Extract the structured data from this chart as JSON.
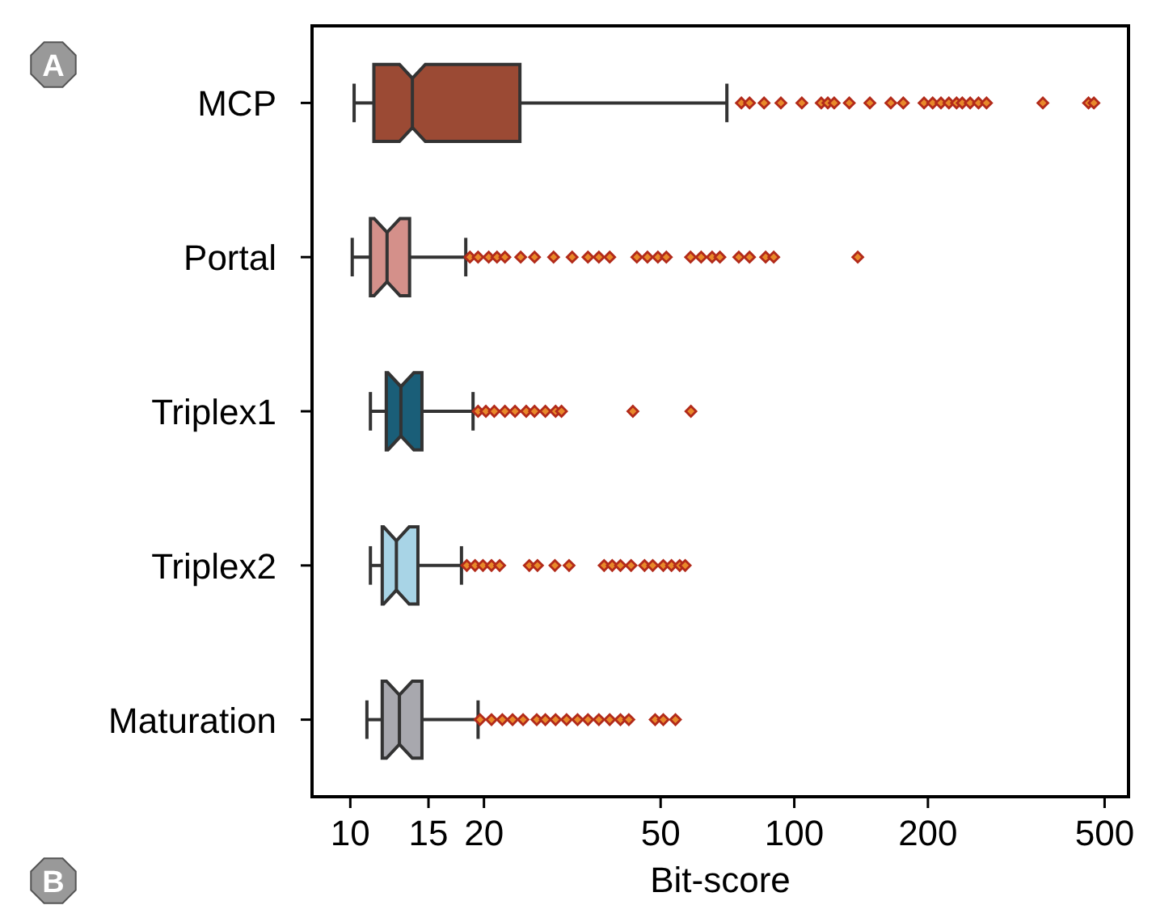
{
  "chart_data": {
    "type": "box",
    "orientation": "horizontal",
    "xlabel": "Bit-score",
    "log": "x",
    "xlim": [
      8.2,
      566
    ],
    "xticks": [
      10,
      15,
      20,
      50,
      100,
      200,
      500
    ],
    "marker": "diamond",
    "grid": false,
    "annotations": [
      "A",
      "B"
    ],
    "categories": [
      "MCP",
      "Portal",
      "Triplex1",
      "Triplex2",
      "Maturation"
    ],
    "colors": [
      "#9b4a34",
      "#d4908a",
      "#1a5e78",
      "#a8d4e6",
      "#a8a8ae"
    ],
    "boxes": [
      {
        "low": 10.2,
        "q1": 11.3,
        "median": 13.8,
        "q3": 24.1,
        "high": 70.5,
        "outliers": [
          76,
          79.3,
          85.5,
          93.3,
          104,
          115,
          119,
          123,
          133,
          148,
          165,
          176,
          196,
          205,
          214,
          223,
          232,
          239,
          249,
          260,
          271,
          363,
          460,
          473
        ]
      },
      {
        "low": 10.1,
        "q1": 11.1,
        "median": 12.1,
        "q3": 13.6,
        "high": 18.2,
        "outliers": [
          18.6,
          19.4,
          20.5,
          21.4,
          22.3,
          24.2,
          26,
          28.7,
          31.6,
          34.3,
          36.3,
          38.4,
          44.2,
          46.7,
          49.3,
          51.5,
          58.4,
          61.7,
          65.3,
          68,
          75,
          79.3,
          86.2,
          89.9,
          139
        ]
      },
      {
        "low": 11.1,
        "q1": 12.05,
        "median": 13,
        "q3": 14.5,
        "high": 18.9,
        "outliers": [
          19.4,
          20.2,
          21.1,
          22.3,
          23.5,
          24.9,
          26,
          27.5,
          29,
          29.9,
          43.3,
          58.5
        ]
      },
      {
        "low": 11.1,
        "q1": 11.8,
        "median": 12.7,
        "q3": 14.2,
        "high": 17.8,
        "outliers": [
          18.3,
          19.1,
          19.9,
          20.8,
          21.7,
          25.3,
          26.4,
          28.9,
          31.1,
          37.3,
          38.9,
          40.6,
          42.9,
          46,
          48,
          50.7,
          52.9,
          55.2,
          56.8
        ]
      },
      {
        "low": 10.9,
        "q1": 11.8,
        "median": 12.9,
        "q3": 14.5,
        "high": 19.4,
        "outliers": [
          19.6,
          20.8,
          22,
          23.2,
          24.5,
          26.3,
          27.5,
          29,
          30.7,
          32.5,
          34.3,
          36.3,
          38.4,
          40.6,
          42.4,
          48.6,
          50.7,
          54
        ]
      }
    ]
  }
}
